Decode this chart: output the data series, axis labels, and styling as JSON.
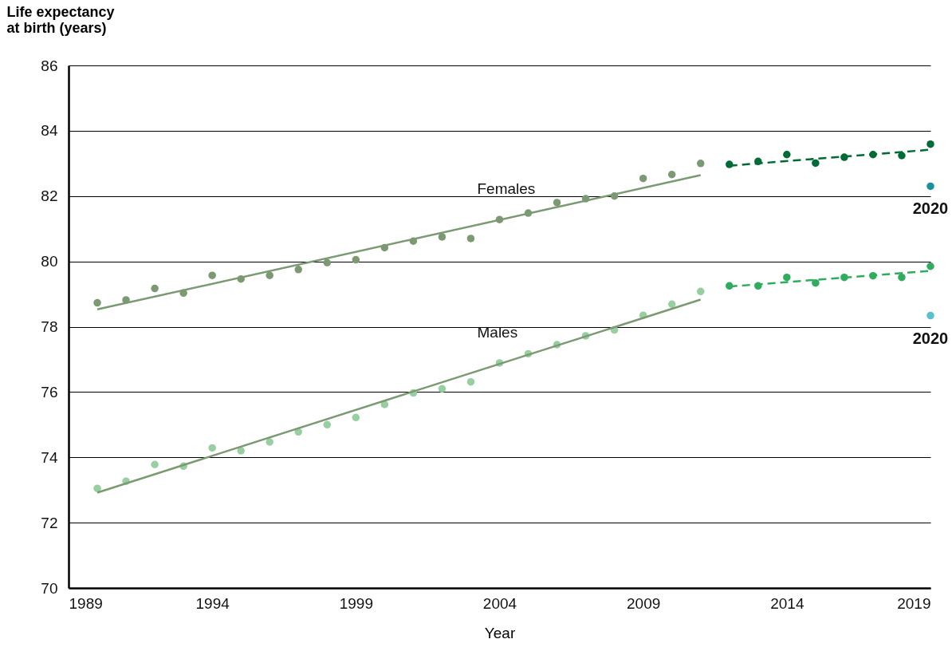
{
  "chart_data": {
    "type": "scatter",
    "xlabel": "Year",
    "ylabel": "Life expectancy at birth (years)",
    "xlim": [
      1989,
      2019
    ],
    "xticks": [
      1989,
      1994,
      1999,
      2004,
      2009,
      2014,
      2019
    ],
    "ylim": [
      70,
      86
    ],
    "yticks": [
      70,
      72,
      74,
      76,
      78,
      80,
      82,
      84,
      86
    ],
    "grid": "y",
    "marker": "circle",
    "series": [
      {
        "name": "Females",
        "color": "#7b9a72",
        "x": [
          1990,
          1991,
          1992,
          1993,
          1994,
          1995,
          1996,
          1997,
          1998,
          1999,
          2000,
          2001,
          2002,
          2003,
          2004,
          2005,
          2006,
          2007,
          2008,
          2009,
          2010,
          2011
        ],
        "values": [
          78.73,
          78.82,
          79.17,
          79.03,
          79.57,
          79.46,
          79.57,
          79.75,
          79.96,
          80.05,
          80.42,
          80.62,
          80.75,
          80.7,
          81.28,
          81.48,
          81.8,
          81.92,
          82.0,
          82.54,
          82.66,
          83.0
        ]
      },
      {
        "name": "Males",
        "color": "#98cfa0",
        "x": [
          1990,
          1991,
          1992,
          1993,
          1994,
          1995,
          1996,
          1997,
          1998,
          1999,
          2000,
          2001,
          2002,
          2003,
          2004,
          2005,
          2006,
          2007,
          2008,
          2009,
          2010,
          2011
        ],
        "values": [
          73.05,
          73.27,
          73.78,
          73.73,
          74.29,
          74.2,
          74.47,
          74.78,
          75.0,
          75.22,
          75.62,
          75.97,
          76.1,
          76.31,
          76.89,
          77.17,
          77.45,
          77.72,
          77.9,
          78.35,
          78.69,
          79.08
        ]
      },
      {
        "type": "line",
        "marker": "none",
        "line_style": "solid",
        "color": "#7b9a72",
        "x": [
          1990,
          2011
        ],
        "values": [
          78.53,
          82.64
        ]
      },
      {
        "type": "line",
        "marker": "none",
        "line_style": "solid",
        "color": "#7b9a72",
        "x": [
          1990,
          2011
        ],
        "values": [
          72.92,
          78.83
        ]
      },
      {
        "color": "#006b35",
        "x": [
          2012,
          2013,
          2014,
          2015,
          2016,
          2017,
          2018,
          2019
        ],
        "values": [
          82.97,
          83.06,
          83.27,
          83.01,
          83.19,
          83.27,
          83.24,
          83.59
        ]
      },
      {
        "type": "line",
        "marker": "none",
        "line_style": "dashed",
        "color": "#006b35",
        "x": [
          2012,
          2019
        ],
        "values": [
          82.93,
          83.42
        ]
      },
      {
        "color": "#2ead5f",
        "x": [
          2012,
          2013,
          2014,
          2015,
          2016,
          2017,
          2018,
          2019
        ],
        "values": [
          79.25,
          79.25,
          79.51,
          79.34,
          79.51,
          79.56,
          79.51,
          79.85
        ]
      },
      {
        "type": "line",
        "marker": "none",
        "line_style": "dashed",
        "color": "#2ead5f",
        "x": [
          2012,
          2019
        ],
        "values": [
          79.23,
          79.71
        ]
      },
      {
        "color": "#17949b",
        "x": [
          2019
        ],
        "values": [
          82.3
        ]
      },
      {
        "color": "#5bc0cc",
        "x": [
          2019
        ],
        "values": [
          78.34
        ]
      }
    ],
    "annotations": [
      {
        "text": "2020",
        "x": 2019,
        "y": 82.3
      },
      {
        "text": "2020",
        "x": 2019,
        "y": 78.34
      }
    ]
  }
}
